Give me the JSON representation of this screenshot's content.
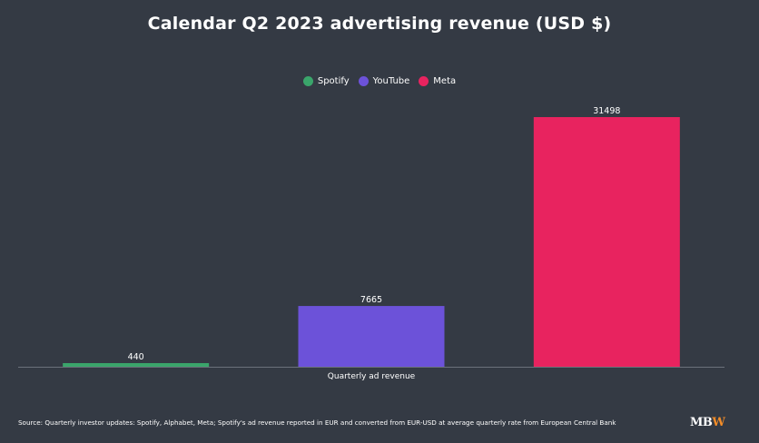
{
  "chart_data": {
    "type": "bar",
    "title": "Calendar Q2 2023 advertising revenue (USD $)",
    "categories": [
      "Quarterly ad revenue"
    ],
    "series": [
      {
        "name": "Spotify",
        "values": [
          440
        ],
        "color": "#3aa56b"
      },
      {
        "name": "YouTube",
        "values": [
          7665
        ],
        "color": "#6c52d9"
      },
      {
        "name": "Meta",
        "values": [
          31498
        ],
        "color": "#e8235f"
      }
    ],
    "ylim": [
      0,
      31498
    ],
    "grid": false,
    "legend_position": "top-center",
    "data_labels": true
  },
  "source_note": "Source: Quarterly investor updates: Spotify, Alphabet, Meta; Spotify's ad revenue reported in EUR and converted from EUR-USD at average quarterly rate from European Central Bank",
  "logo": {
    "part1": "M",
    "part2": "B",
    "part3": "W"
  },
  "colors": {
    "background": "#343a44",
    "axis": "#6b717b"
  }
}
